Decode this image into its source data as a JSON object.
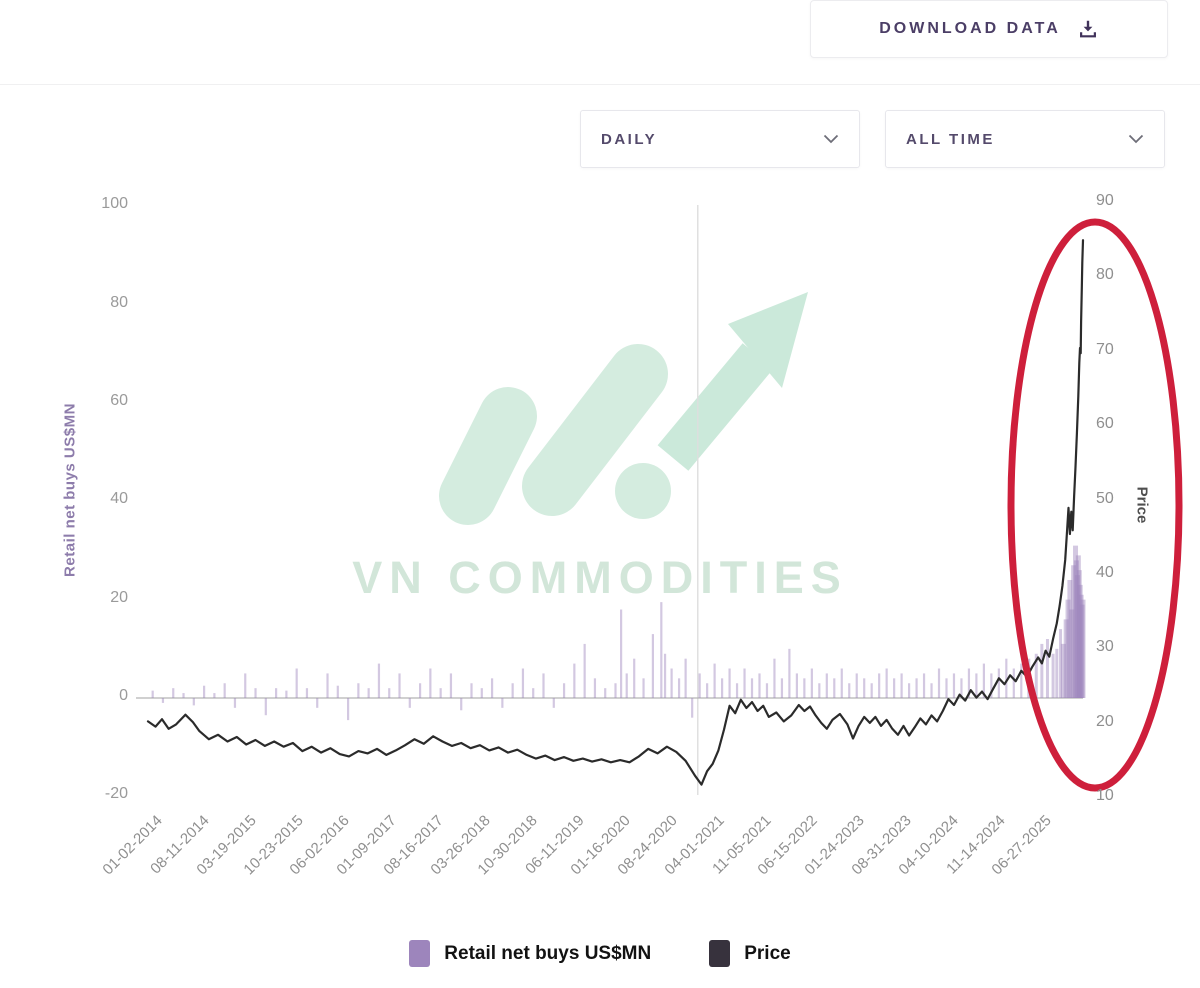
{
  "header": {
    "download_label": "DOWNLOAD DATA"
  },
  "filters": {
    "frequency": {
      "value": "DAILY"
    },
    "range": {
      "value": "ALL TIME"
    }
  },
  "watermark": {
    "text": "VN COMMODITIES"
  },
  "chart_data": {
    "type": "composed",
    "title": "",
    "x_tick_labels": [
      "01-02-2014",
      "08-11-2014",
      "03-19-2015",
      "10-23-2015",
      "06-02-2016",
      "01-09-2017",
      "08-16-2017",
      "03-26-2018",
      "10-30-2018",
      "06-11-2019",
      "01-16-2020",
      "08-24-2020",
      "04-01-2021",
      "11-05-2021",
      "06-15-2022",
      "01-24-2023",
      "08-31-2023",
      "04-10-2024",
      "11-14-2024",
      "06-27-2025"
    ],
    "left_axis": {
      "label": "Retail net buys US$MN",
      "ticks": [
        100,
        80,
        60,
        40,
        20,
        0,
        -20
      ],
      "range": [
        -20,
        100
      ],
      "color": "#8d7cab"
    },
    "right_axis": {
      "label": "Price",
      "ticks": [
        90,
        80,
        70,
        60,
        50,
        40,
        30,
        20,
        10
      ],
      "range": [
        10,
        90
      ],
      "color": "#4f4f4f"
    },
    "legend": [
      {
        "label": "Retail net buys US$MN",
        "color": "#9d85bc"
      },
      {
        "label": "Price",
        "color": "#37323d"
      }
    ],
    "annotations": {
      "highlight": {
        "shape": "ellipse",
        "color": "#ce1f3b",
        "note": "circles 2025 price spike"
      },
      "vertical_gridline_t": 0.588
    },
    "series": [
      {
        "name": "Retail net buys US$MN",
        "type": "bar",
        "axis": "left",
        "color": "#9d85bc",
        "points": [
          [
            0.005,
            1.5
          ],
          [
            0.016,
            -1
          ],
          [
            0.027,
            2
          ],
          [
            0.038,
            1
          ],
          [
            0.049,
            -1.5
          ],
          [
            0.06,
            2.5
          ],
          [
            0.071,
            1
          ],
          [
            0.082,
            3
          ],
          [
            0.093,
            -2
          ],
          [
            0.104,
            5
          ],
          [
            0.115,
            2
          ],
          [
            0.126,
            -3.5
          ],
          [
            0.137,
            2
          ],
          [
            0.148,
            1.5
          ],
          [
            0.159,
            6
          ],
          [
            0.17,
            2
          ],
          [
            0.181,
            -2
          ],
          [
            0.192,
            5
          ],
          [
            0.203,
            2.5
          ],
          [
            0.214,
            -4.5
          ],
          [
            0.225,
            3
          ],
          [
            0.236,
            2
          ],
          [
            0.247,
            7
          ],
          [
            0.258,
            2
          ],
          [
            0.269,
            5
          ],
          [
            0.28,
            -2
          ],
          [
            0.291,
            3
          ],
          [
            0.302,
            6
          ],
          [
            0.313,
            2
          ],
          [
            0.324,
            5
          ],
          [
            0.335,
            -2.5
          ],
          [
            0.346,
            3
          ],
          [
            0.357,
            2
          ],
          [
            0.368,
            4
          ],
          [
            0.379,
            -2
          ],
          [
            0.39,
            3
          ],
          [
            0.401,
            6
          ],
          [
            0.412,
            2
          ],
          [
            0.423,
            5
          ],
          [
            0.434,
            -2
          ],
          [
            0.445,
            3
          ],
          [
            0.456,
            7
          ],
          [
            0.467,
            11
          ],
          [
            0.478,
            4
          ],
          [
            0.489,
            2
          ],
          [
            0.5,
            3
          ],
          [
            0.506,
            18
          ],
          [
            0.512,
            5
          ],
          [
            0.52,
            8
          ],
          [
            0.53,
            4
          ],
          [
            0.54,
            13
          ],
          [
            0.549,
            19.5
          ],
          [
            0.553,
            9
          ],
          [
            0.56,
            6
          ],
          [
            0.568,
            4
          ],
          [
            0.575,
            8
          ],
          [
            0.582,
            -4
          ],
          [
            0.59,
            5
          ],
          [
            0.598,
            3
          ],
          [
            0.606,
            7
          ],
          [
            0.614,
            4
          ],
          [
            0.622,
            6
          ],
          [
            0.63,
            3
          ],
          [
            0.638,
            6
          ],
          [
            0.646,
            4
          ],
          [
            0.654,
            5
          ],
          [
            0.662,
            3
          ],
          [
            0.67,
            8
          ],
          [
            0.678,
            4
          ],
          [
            0.686,
            10
          ],
          [
            0.694,
            5
          ],
          [
            0.702,
            4
          ],
          [
            0.71,
            6
          ],
          [
            0.718,
            3
          ],
          [
            0.726,
            5
          ],
          [
            0.734,
            4
          ],
          [
            0.742,
            6
          ],
          [
            0.75,
            3
          ],
          [
            0.758,
            5
          ],
          [
            0.766,
            4
          ],
          [
            0.774,
            3
          ],
          [
            0.782,
            5
          ],
          [
            0.79,
            6
          ],
          [
            0.798,
            4
          ],
          [
            0.806,
            5
          ],
          [
            0.814,
            3
          ],
          [
            0.822,
            4
          ],
          [
            0.83,
            5
          ],
          [
            0.838,
            3
          ],
          [
            0.846,
            6
          ],
          [
            0.854,
            4
          ],
          [
            0.862,
            5
          ],
          [
            0.87,
            4
          ],
          [
            0.878,
            6
          ],
          [
            0.886,
            5
          ],
          [
            0.894,
            7
          ],
          [
            0.902,
            5
          ],
          [
            0.91,
            6
          ],
          [
            0.918,
            8
          ],
          [
            0.926,
            6
          ],
          [
            0.934,
            7
          ],
          [
            0.942,
            8
          ],
          [
            0.95,
            9
          ],
          [
            0.956,
            11
          ],
          [
            0.962,
            12
          ],
          [
            0.968,
            9
          ],
          [
            0.972,
            10
          ],
          [
            0.976,
            14
          ],
          [
            0.979,
            11
          ],
          [
            0.982,
            16
          ],
          [
            0.984,
            20
          ],
          [
            0.986,
            24
          ],
          [
            0.988,
            18
          ],
          [
            0.99,
            27
          ],
          [
            0.992,
            31
          ],
          [
            0.993,
            28
          ],
          [
            0.994,
            25
          ],
          [
            0.995,
            29
          ],
          [
            0.996,
            26
          ],
          [
            0.997,
            23
          ],
          [
            0.998,
            21
          ],
          [
            0.999,
            19
          ],
          [
            1.0,
            20
          ]
        ]
      },
      {
        "name": "Price",
        "type": "line",
        "axis": "right",
        "color": "#2b2b2b",
        "points": [
          [
            0,
            20.3
          ],
          [
            0.008,
            19.6
          ],
          [
            0.015,
            20.6
          ],
          [
            0.022,
            19.3
          ],
          [
            0.03,
            19.9
          ],
          [
            0.04,
            21.2
          ],
          [
            0.048,
            20.2
          ],
          [
            0.055,
            19.0
          ],
          [
            0.065,
            17.9
          ],
          [
            0.075,
            18.5
          ],
          [
            0.085,
            17.6
          ],
          [
            0.095,
            18.2
          ],
          [
            0.105,
            17.2
          ],
          [
            0.115,
            17.8
          ],
          [
            0.125,
            17.0
          ],
          [
            0.135,
            17.6
          ],
          [
            0.145,
            16.9
          ],
          [
            0.155,
            17.4
          ],
          [
            0.165,
            16.3
          ],
          [
            0.175,
            16.9
          ],
          [
            0.185,
            16.1
          ],
          [
            0.195,
            16.7
          ],
          [
            0.205,
            15.9
          ],
          [
            0.215,
            15.6
          ],
          [
            0.225,
            16.3
          ],
          [
            0.235,
            16.0
          ],
          [
            0.245,
            16.6
          ],
          [
            0.255,
            15.8
          ],
          [
            0.265,
            16.4
          ],
          [
            0.275,
            17.1
          ],
          [
            0.285,
            17.9
          ],
          [
            0.295,
            17.3
          ],
          [
            0.305,
            18.3
          ],
          [
            0.315,
            17.6
          ],
          [
            0.325,
            17.0
          ],
          [
            0.335,
            17.4
          ],
          [
            0.345,
            16.7
          ],
          [
            0.355,
            17.1
          ],
          [
            0.365,
            16.4
          ],
          [
            0.375,
            16.8
          ],
          [
            0.385,
            16.1
          ],
          [
            0.395,
            16.5
          ],
          [
            0.405,
            15.8
          ],
          [
            0.415,
            15.3
          ],
          [
            0.425,
            15.7
          ],
          [
            0.435,
            15.1
          ],
          [
            0.445,
            15.5
          ],
          [
            0.455,
            15.0
          ],
          [
            0.465,
            15.3
          ],
          [
            0.475,
            14.9
          ],
          [
            0.485,
            15.2
          ],
          [
            0.495,
            14.8
          ],
          [
            0.505,
            15.1
          ],
          [
            0.515,
            14.8
          ],
          [
            0.525,
            15.6
          ],
          [
            0.535,
            16.6
          ],
          [
            0.545,
            16.0
          ],
          [
            0.555,
            16.9
          ],
          [
            0.565,
            16.2
          ],
          [
            0.575,
            15.0
          ],
          [
            0.585,
            13.0
          ],
          [
            0.592,
            11.8
          ],
          [
            0.598,
            13.6
          ],
          [
            0.604,
            14.6
          ],
          [
            0.61,
            16.4
          ],
          [
            0.616,
            19.2
          ],
          [
            0.622,
            22.4
          ],
          [
            0.628,
            21.4
          ],
          [
            0.634,
            23.2
          ],
          [
            0.64,
            22.1
          ],
          [
            0.646,
            22.9
          ],
          [
            0.652,
            21.7
          ],
          [
            0.658,
            22.4
          ],
          [
            0.664,
            20.9
          ],
          [
            0.672,
            21.5
          ],
          [
            0.68,
            20.3
          ],
          [
            0.688,
            21.1
          ],
          [
            0.696,
            22.5
          ],
          [
            0.702,
            21.7
          ],
          [
            0.708,
            22.3
          ],
          [
            0.714,
            21.1
          ],
          [
            0.72,
            20.1
          ],
          [
            0.726,
            19.3
          ],
          [
            0.732,
            20.5
          ],
          [
            0.74,
            21.3
          ],
          [
            0.748,
            19.9
          ],
          [
            0.754,
            18.0
          ],
          [
            0.76,
            19.7
          ],
          [
            0.766,
            20.9
          ],
          [
            0.772,
            20.1
          ],
          [
            0.778,
            20.9
          ],
          [
            0.784,
            19.7
          ],
          [
            0.79,
            20.5
          ],
          [
            0.796,
            19.3
          ],
          [
            0.802,
            18.5
          ],
          [
            0.808,
            19.7
          ],
          [
            0.814,
            18.4
          ],
          [
            0.82,
            19.5
          ],
          [
            0.826,
            20.7
          ],
          [
            0.832,
            19.9
          ],
          [
            0.838,
            21.1
          ],
          [
            0.844,
            20.3
          ],
          [
            0.85,
            21.7
          ],
          [
            0.856,
            23.3
          ],
          [
            0.862,
            22.5
          ],
          [
            0.868,
            23.9
          ],
          [
            0.874,
            23.1
          ],
          [
            0.88,
            24.5
          ],
          [
            0.886,
            23.5
          ],
          [
            0.892,
            24.3
          ],
          [
            0.898,
            23.3
          ],
          [
            0.904,
            24.7
          ],
          [
            0.91,
            26.1
          ],
          [
            0.916,
            25.3
          ],
          [
            0.922,
            26.5
          ],
          [
            0.928,
            25.7
          ],
          [
            0.934,
            27.1
          ],
          [
            0.94,
            26.3
          ],
          [
            0.946,
            27.7
          ],
          [
            0.952,
            28.9
          ],
          [
            0.956,
            28.1
          ],
          [
            0.96,
            29.8
          ],
          [
            0.964,
            29.0
          ],
          [
            0.968,
            31.4
          ],
          [
            0.972,
            33.5
          ],
          [
            0.975,
            35.8
          ],
          [
            0.978,
            38.5
          ],
          [
            0.981,
            42.0
          ],
          [
            0.983,
            46.0
          ],
          [
            0.9845,
            49.0
          ],
          [
            0.986,
            45.5
          ],
          [
            0.9875,
            48.5
          ],
          [
            0.989,
            46.0
          ],
          [
            0.9905,
            50.5
          ],
          [
            0.992,
            54.5
          ],
          [
            0.9935,
            59.0
          ],
          [
            0.995,
            64.0
          ],
          [
            0.996,
            68.5
          ],
          [
            0.9968,
            70.5
          ],
          [
            0.9975,
            69.8
          ],
          [
            0.998,
            74.0
          ],
          [
            0.9987,
            78.5
          ],
          [
            0.9993,
            82.0
          ],
          [
            1,
            85.0
          ]
        ]
      }
    ]
  }
}
